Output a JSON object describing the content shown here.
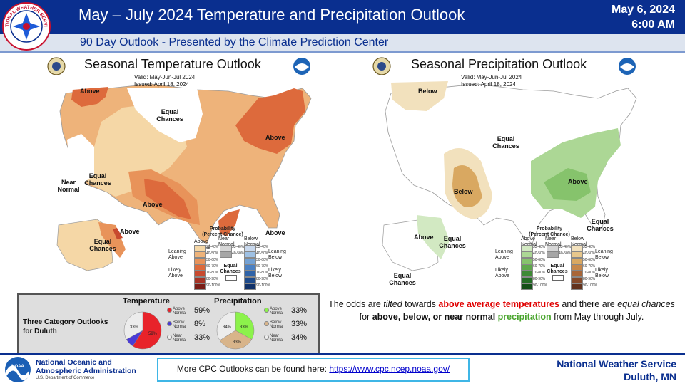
{
  "header": {
    "title": "May – July 2024 Temperature and Precipitation Outlook",
    "date": "May 6, 2024",
    "time": "6:00 AM",
    "subtitle": "90 Day Outlook - Presented by the Climate Prediction Center",
    "logo_text": "NATIONAL WEATHER SERVICE"
  },
  "temp_map": {
    "title": "Seasonal Temperature Outlook",
    "valid": "Valid:  May-Jun-Jul 2024",
    "issued": "Issued:  April 18, 2024",
    "labels": {
      "above_nw": "Above",
      "equal_n": "Equal Chances",
      "above_ne": "Above",
      "near_normal": "Near Normal",
      "equal_w": "Equal Chances",
      "above_sw": "Above",
      "above_fl": "Above",
      "above_ak": "Above",
      "equal_ak": "Equal Chances"
    }
  },
  "precip_map": {
    "title": "Seasonal Precipitation Outlook",
    "valid": "Valid:  May-Jun-Jul 2024",
    "issued": "Issued:  April 18, 2024",
    "labels": {
      "below_nw": "Below",
      "equal_c": "Equal Chances",
      "below_c": "Below",
      "above_se": "Above",
      "equal_fl": "Equal Chances",
      "above_ak": "Above",
      "equal_ak": "Equal Chances",
      "equal_ak2": "Equal Chances"
    }
  },
  "legend": {
    "title": "Probability (Percent Chance)",
    "col_above": "Above Normal",
    "col_near": "Near Normal",
    "col_below": "Below Normal",
    "bins": [
      "33-40%",
      "40-50%",
      "50-60%",
      "60-70%",
      "70-80%",
      "80-90%",
      "90-100%"
    ],
    "near_bins": [
      "33-40%",
      "40-50%"
    ],
    "equal_chances": "Equal Chances",
    "temp_leaning_above": "Leaning Above",
    "temp_likely_above": "Likely Above",
    "temp_leaning_below": "Leaning Below",
    "temp_likely_below": "Likely Below",
    "precip_leaning_above": "Leaning Above",
    "precip_likely_above": "Likely Above",
    "precip_leaning_below": "Leaning Below",
    "precip_likely_below": "Likely Below",
    "temp_above_colors": [
      "#f5d7a6",
      "#eeb37a",
      "#e8935a",
      "#dd6a3c",
      "#c84a2f",
      "#a63325",
      "#7a1d17"
    ],
    "temp_below_colors": [
      "#c9d9ee",
      "#9ec0e3",
      "#73a1d4",
      "#4a80c3",
      "#2f63a8",
      "#1d4a8b",
      "#11326a"
    ],
    "precip_above_colors": [
      "#d2e9c2",
      "#acd795",
      "#86c36c",
      "#5fa84c",
      "#3e8a35",
      "#256c25",
      "#144e17"
    ],
    "precip_below_colors": [
      "#f2e1bd",
      "#e7c78c",
      "#d9a861",
      "#c6874a",
      "#a96638",
      "#864a2a",
      "#62321d"
    ],
    "near_colors": [
      "#d6d6d6",
      "#a6a6a6"
    ]
  },
  "duluth": {
    "label": "Three Category Outlooks for Duluth",
    "temp_header": "Temperature",
    "precip_header": "Precipitation",
    "temp": [
      {
        "name": "Above Normal",
        "value": 59,
        "pct": "59%",
        "color": "#e8232a"
      },
      {
        "name": "Below Normal",
        "value": 8,
        "pct": "8%",
        "color": "#4a3bd6"
      },
      {
        "name": "Near Normal",
        "value": 33,
        "pct": "33%",
        "color": "#ececec"
      }
    ],
    "precip": [
      {
        "name": "Above Normal",
        "value": 33,
        "pct": "33%",
        "color": "#8cf24b"
      },
      {
        "name": "Below Normal",
        "value": 33,
        "pct": "33%",
        "color": "#d8b48a"
      },
      {
        "name": "Near Normal",
        "value": 34,
        "pct": "34%",
        "color": "#ececec"
      }
    ],
    "temp_slices": [
      "59%",
      "33%"
    ],
    "precip_slices": [
      "33%",
      "34%",
      "33%"
    ]
  },
  "note": {
    "p1": "The odds are ",
    "tilted": "tilted",
    "p2": " towards ",
    "above_temps": "above average temperatures",
    "p3": " and there are ",
    "equal": "equal chances",
    "p4": " for ",
    "cats": "above, below, or near normal",
    "p5": " ",
    "precipitation": "precipitation",
    "p6": " from May through July."
  },
  "footer": {
    "noaa_line1": "National Oceanic and",
    "noaa_line2": "Atmospheric Administration",
    "noaa_dept": "U.S. Department of Commerce",
    "cpc_text": "More CPC Outlooks can be found here: ",
    "cpc_link": "https://www.cpc.ncep.noaa.gov/",
    "nws_line1": "National Weather Service",
    "nws_line2": "Duluth, MN"
  },
  "colors": {
    "header_blue": "#0a2f8f",
    "red_text": "#e00000",
    "green_text": "#4aa52e"
  }
}
